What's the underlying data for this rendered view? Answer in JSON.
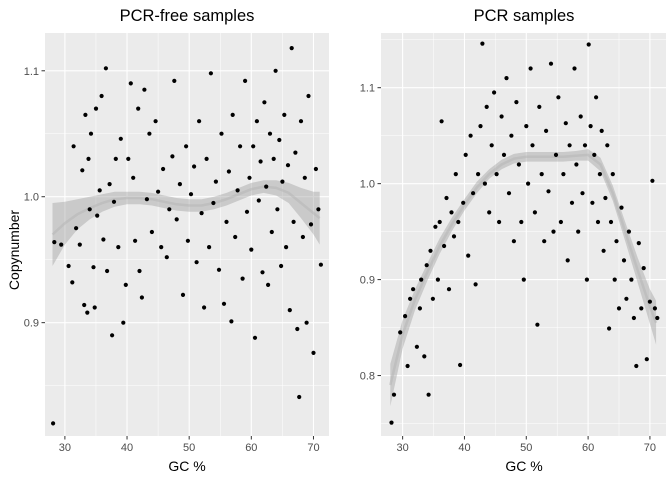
{
  "ylabel": "Copynumber",
  "colors": {
    "panel": "#ebebeb",
    "grid": "#ffffff",
    "point": "#000000",
    "band": "#999999",
    "text": "#4d4d4d"
  },
  "chart_data": [
    {
      "type": "scatter",
      "title": "PCR-free samples",
      "xlabel": "GC %",
      "ylabel": "Copynumber",
      "xlim": [
        26.8,
        72.5
      ],
      "ylim": [
        0.81,
        1.13
      ],
      "xticks": [
        30,
        40,
        50,
        60,
        70
      ],
      "yticks": [
        0.9,
        1.0,
        1.1
      ],
      "ytick_labels": [
        "0.9",
        "1.0",
        "1.1"
      ],
      "grid": true,
      "smooth": {
        "x": [
          28,
          30,
          32,
          34,
          36,
          38,
          40,
          42,
          44,
          46,
          48,
          50,
          52,
          54,
          56,
          58,
          60,
          62,
          64,
          66,
          68,
          70,
          71
        ],
        "y": [
          0.97,
          0.979,
          0.986,
          0.991,
          0.995,
          0.998,
          0.999,
          0.999,
          0.998,
          0.996,
          0.994,
          0.993,
          0.993,
          0.995,
          0.998,
          1.002,
          1.006,
          1.008,
          1.007,
          1.003,
          0.995,
          0.987,
          0.983
        ],
        "lower": [
          0.945,
          0.962,
          0.974,
          0.982,
          0.988,
          0.992,
          0.994,
          0.994,
          0.993,
          0.991,
          0.989,
          0.988,
          0.988,
          0.99,
          0.993,
          0.997,
          1.001,
          1.003,
          1.001,
          0.995,
          0.983,
          0.97,
          0.962
        ],
        "upper": [
          0.995,
          0.996,
          0.998,
          1.0,
          1.002,
          1.004,
          1.004,
          1.004,
          1.003,
          1.001,
          0.999,
          0.998,
          0.998,
          1.0,
          1.003,
          1.007,
          1.011,
          1.013,
          1.013,
          1.011,
          1.007,
          1.004,
          1.004
        ]
      },
      "points": [
        [
          28.1,
          0.82
        ],
        [
          28.3,
          0.964
        ],
        [
          29.4,
          0.962
        ],
        [
          30.6,
          0.945
        ],
        [
          31.2,
          0.932
        ],
        [
          31.4,
          1.04
        ],
        [
          31.8,
          0.975
        ],
        [
          32.4,
          0.962
        ],
        [
          32.8,
          1.021
        ],
        [
          33.1,
          0.914
        ],
        [
          33.3,
          1.065
        ],
        [
          33.6,
          0.908
        ],
        [
          33.8,
          1.03
        ],
        [
          34.0,
          0.99
        ],
        [
          34.2,
          1.05
        ],
        [
          34.6,
          0.944
        ],
        [
          34.8,
          0.912
        ],
        [
          35.0,
          1.07
        ],
        [
          35.2,
          0.985
        ],
        [
          35.6,
          1.005
        ],
        [
          35.9,
          1.08
        ],
        [
          36.2,
          0.966
        ],
        [
          36.6,
          1.102
        ],
        [
          36.8,
          0.941
        ],
        [
          37.2,
          1.01
        ],
        [
          37.6,
          0.89
        ],
        [
          37.9,
          0.996
        ],
        [
          38.2,
          1.03
        ],
        [
          38.6,
          0.96
        ],
        [
          39.0,
          1.046
        ],
        [
          39.4,
          0.9
        ],
        [
          39.8,
          0.93
        ],
        [
          40.2,
          1.03
        ],
        [
          40.6,
          1.09
        ],
        [
          41.0,
          1.015
        ],
        [
          41.3,
          0.965
        ],
        [
          41.8,
          1.07
        ],
        [
          42.0,
          0.941
        ],
        [
          42.4,
          0.92
        ],
        [
          42.8,
          1.085
        ],
        [
          43.2,
          0.998
        ],
        [
          43.6,
          1.05
        ],
        [
          44.0,
          0.972
        ],
        [
          44.6,
          1.06
        ],
        [
          45.0,
          1.004
        ],
        [
          45.5,
          0.96
        ],
        [
          45.8,
          1.022
        ],
        [
          46.4,
          0.952
        ],
        [
          46.8,
          0.99
        ],
        [
          47.3,
          1.032
        ],
        [
          47.6,
          1.092
        ],
        [
          48.0,
          0.982
        ],
        [
          48.5,
          1.01
        ],
        [
          49.0,
          0.922
        ],
        [
          49.5,
          1.04
        ],
        [
          49.8,
          0.965
        ],
        [
          50.3,
          1.002
        ],
        [
          50.8,
          1.024
        ],
        [
          51.2,
          0.948
        ],
        [
          51.6,
          1.06
        ],
        [
          52.0,
          0.987
        ],
        [
          52.4,
          0.912
        ],
        [
          52.8,
          1.03
        ],
        [
          53.2,
          0.96
        ],
        [
          53.5,
          1.098
        ],
        [
          53.9,
          0.995
        ],
        [
          54.3,
          1.012
        ],
        [
          54.8,
          0.942
        ],
        [
          55.2,
          1.05
        ],
        [
          55.6,
          0.915
        ],
        [
          56.0,
          0.98
        ],
        [
          56.4,
          1.02
        ],
        [
          56.8,
          0.901
        ],
        [
          57.0,
          1.065
        ],
        [
          57.4,
          0.968
        ],
        [
          57.8,
          1.005
        ],
        [
          58.2,
          1.04
        ],
        [
          58.6,
          0.935
        ],
        [
          59.0,
          1.092
        ],
        [
          59.3,
          0.988
        ],
        [
          59.7,
          1.015
        ],
        [
          60.0,
          0.958
        ],
        [
          60.3,
          1.04
        ],
        [
          60.6,
          0.888
        ],
        [
          60.9,
          1.06
        ],
        [
          61.2,
          0.997
        ],
        [
          61.5,
          1.028
        ],
        [
          61.8,
          0.94
        ],
        [
          62.1,
          1.075
        ],
        [
          62.4,
          1.008
        ],
        [
          62.7,
          0.93
        ],
        [
          63.0,
          1.05
        ],
        [
          63.3,
          0.972
        ],
        [
          63.6,
          1.03
        ],
        [
          63.9,
          1.1
        ],
        [
          64.2,
          0.99
        ],
        [
          64.5,
          1.045
        ],
        [
          64.8,
          0.945
        ],
        [
          65.0,
          1.012
        ],
        [
          65.3,
          1.065
        ],
        [
          65.6,
          0.96
        ],
        [
          65.9,
          1.025
        ],
        [
          66.2,
          0.91
        ],
        [
          66.5,
          1.118
        ],
        [
          66.8,
          0.98
        ],
        [
          67.1,
          1.035
        ],
        [
          67.4,
          0.895
        ],
        [
          67.7,
          0.841
        ],
        [
          68.0,
          1.06
        ],
        [
          68.3,
          0.968
        ],
        [
          68.6,
          1.015
        ],
        [
          68.9,
          0.9
        ],
        [
          69.2,
          1.08
        ],
        [
          69.6,
          0.978
        ],
        [
          70.0,
          0.876
        ],
        [
          70.4,
          1.022
        ],
        [
          70.8,
          0.99
        ],
        [
          71.2,
          0.946
        ]
      ]
    },
    {
      "type": "scatter",
      "title": "PCR samples",
      "xlabel": "GC %",
      "ylabel": "",
      "xlim": [
        26.5,
        72.6
      ],
      "ylim": [
        0.737,
        1.157
      ],
      "xticks": [
        30,
        40,
        50,
        60,
        70
      ],
      "yticks": [
        0.8,
        0.9,
        1.0,
        1.1
      ],
      "ytick_labels": [
        "0.8",
        "0.9",
        "1.0",
        "1.1"
      ],
      "grid": true,
      "smooth": {
        "x": [
          28,
          30,
          32,
          34,
          36,
          38,
          40,
          42,
          44,
          46,
          48,
          50,
          52,
          54,
          56,
          58,
          60,
          62,
          64,
          66,
          68,
          70,
          71
        ],
        "y": [
          0.79,
          0.843,
          0.879,
          0.908,
          0.935,
          0.958,
          0.978,
          0.996,
          1.01,
          1.02,
          1.026,
          1.028,
          1.028,
          1.028,
          1.028,
          1.029,
          1.03,
          1.02,
          0.99,
          0.95,
          0.91,
          0.872,
          0.855
        ],
        "lower": [
          0.768,
          0.828,
          0.868,
          0.899,
          0.927,
          0.951,
          0.972,
          0.99,
          1.005,
          1.015,
          1.021,
          1.023,
          1.023,
          1.023,
          1.023,
          1.024,
          1.024,
          1.013,
          0.982,
          0.94,
          0.897,
          0.854,
          0.832
        ],
        "upper": [
          0.812,
          0.858,
          0.89,
          0.917,
          0.943,
          0.965,
          0.984,
          1.002,
          1.015,
          1.025,
          1.031,
          1.033,
          1.033,
          1.033,
          1.033,
          1.034,
          1.036,
          1.027,
          0.998,
          0.96,
          0.923,
          0.89,
          0.878
        ]
      },
      "points": [
        [
          28.2,
          0.751
        ],
        [
          28.6,
          0.78
        ],
        [
          29.6,
          0.845
        ],
        [
          30.4,
          0.862
        ],
        [
          30.8,
          0.81
        ],
        [
          31.2,
          0.88
        ],
        [
          31.7,
          0.89
        ],
        [
          32.3,
          0.83
        ],
        [
          32.8,
          0.87
        ],
        [
          33.0,
          0.9
        ],
        [
          33.5,
          0.82
        ],
        [
          33.9,
          0.915
        ],
        [
          34.2,
          0.78
        ],
        [
          34.5,
          0.93
        ],
        [
          34.9,
          0.88
        ],
        [
          35.3,
          0.955
        ],
        [
          35.7,
          0.9
        ],
        [
          36.0,
          0.96
        ],
        [
          36.3,
          1.065
        ],
        [
          36.7,
          0.935
        ],
        [
          37.1,
          0.985
        ],
        [
          37.5,
          0.89
        ],
        [
          37.9,
          0.97
        ],
        [
          38.3,
          0.945
        ],
        [
          38.6,
          1.01
        ],
        [
          39.0,
          0.96
        ],
        [
          39.3,
          0.811
        ],
        [
          39.8,
          0.98
        ],
        [
          40.2,
          1.03
        ],
        [
          40.6,
          0.925
        ],
        [
          41.0,
          1.05
        ],
        [
          41.4,
          0.99
        ],
        [
          41.8,
          0.895
        ],
        [
          42.2,
          1.01
        ],
        [
          42.6,
          1.06
        ],
        [
          42.9,
          1.146
        ],
        [
          43.3,
          1.0
        ],
        [
          43.6,
          1.08
        ],
        [
          44.0,
          0.97
        ],
        [
          44.4,
          1.04
        ],
        [
          44.8,
          1.095
        ],
        [
          45.2,
          1.01
        ],
        [
          45.6,
          0.96
        ],
        [
          46.0,
          1.07
        ],
        [
          46.4,
          1.03
        ],
        [
          46.8,
          1.11
        ],
        [
          47.2,
          0.99
        ],
        [
          47.6,
          1.05
        ],
        [
          48.0,
          0.94
        ],
        [
          48.4,
          1.085
        ],
        [
          48.8,
          1.02
        ],
        [
          49.2,
          0.96
        ],
        [
          49.6,
          0.9
        ],
        [
          50.0,
          1.06
        ],
        [
          50.3,
          1.0
        ],
        [
          50.7,
          1.12
        ],
        [
          51.0,
          1.04
        ],
        [
          51.4,
          0.97
        ],
        [
          51.8,
          0.853
        ],
        [
          52.1,
          1.08
        ],
        [
          52.5,
          1.01
        ],
        [
          52.9,
          0.94
        ],
        [
          53.2,
          1.055
        ],
        [
          53.6,
          0.992
        ],
        [
          54.0,
          1.125
        ],
        [
          54.4,
          0.95
        ],
        [
          54.8,
          1.03
        ],
        [
          55.2,
          1.09
        ],
        [
          55.6,
          0.96
        ],
        [
          56.0,
          1.01
        ],
        [
          56.4,
          1.063
        ],
        [
          56.7,
          0.92
        ],
        [
          57.0,
          1.04
        ],
        [
          57.4,
          0.98
        ],
        [
          57.8,
          1.12
        ],
        [
          58.1,
          1.02
        ],
        [
          58.4,
          0.95
        ],
        [
          58.8,
          1.07
        ],
        [
          59.1,
          0.99
        ],
        [
          59.5,
          1.04
        ],
        [
          59.8,
          0.9
        ],
        [
          60.1,
          1.145
        ],
        [
          60.4,
          1.06
        ],
        [
          60.7,
          0.98
        ],
        [
          61.0,
          1.03
        ],
        [
          61.3,
          1.09
        ],
        [
          61.6,
          0.96
        ],
        [
          61.9,
          1.01
        ],
        [
          62.2,
          1.055
        ],
        [
          62.5,
          0.93
        ],
        [
          62.8,
          0.985
        ],
        [
          63.1,
          1.04
        ],
        [
          63.4,
          0.849
        ],
        [
          63.7,
          0.96
        ],
        [
          64.0,
          1.01
        ],
        [
          64.3,
          0.9
        ],
        [
          64.6,
          0.94
        ],
        [
          65.0,
          0.87
        ],
        [
          65.4,
          0.975
        ],
        [
          65.8,
          0.92
        ],
        [
          66.2,
          0.88
        ],
        [
          66.6,
          0.95
        ],
        [
          67.0,
          0.9
        ],
        [
          67.4,
          0.86
        ],
        [
          67.8,
          0.81
        ],
        [
          68.2,
          0.938
        ],
        [
          68.6,
          0.87
        ],
        [
          69.0,
          0.912
        ],
        [
          69.5,
          0.817
        ],
        [
          70.0,
          0.877
        ],
        [
          70.4,
          1.003
        ],
        [
          70.8,
          0.87
        ],
        [
          71.2,
          0.86
        ]
      ]
    }
  ]
}
